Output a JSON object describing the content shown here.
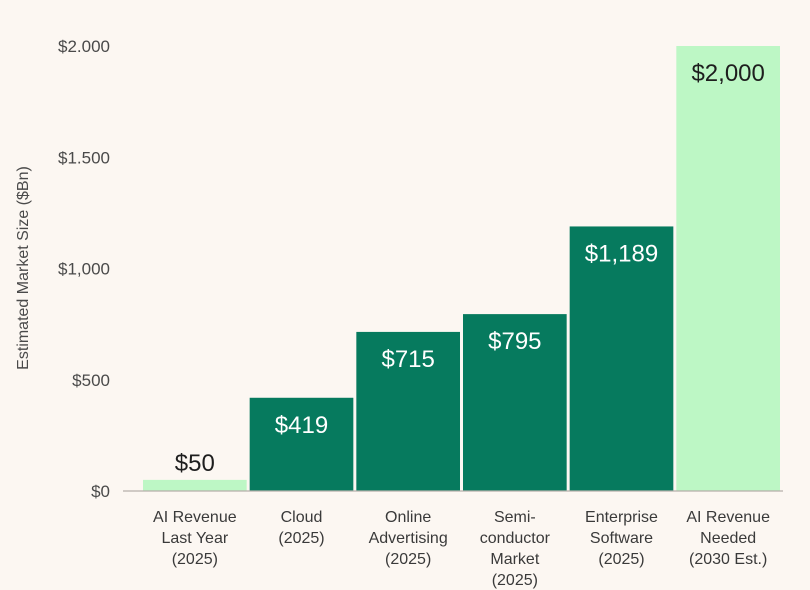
{
  "chart_data": {
    "type": "bar",
    "title": "",
    "xlabel": "",
    "ylabel": "Estimated Market Size ($Bn)",
    "ylim": [
      0,
      2000
    ],
    "yticks": [
      0,
      500,
      1000,
      1500,
      2000
    ],
    "ytick_labels": [
      "$0",
      "$500",
      "$1,000",
      "$1.500",
      "$2.000"
    ],
    "categories": [
      [
        "AI Revenue",
        "Last Year",
        "(2025)"
      ],
      [
        "Cloud",
        "(2025)"
      ],
      [
        "Online",
        "Advertising",
        "(2025)"
      ],
      [
        "Semi-",
        "conductor",
        "Market",
        "(2025)"
      ],
      [
        "Enterprise",
        "Software",
        "(2025)"
      ],
      [
        "AI Revenue",
        "Needed",
        "(2030 Est.)"
      ]
    ],
    "values": [
      50,
      419,
      715,
      795,
      1189,
      2000
    ],
    "value_labels": [
      "$50",
      "$419",
      "$715",
      "$795",
      "$1,189",
      "$2,000"
    ],
    "bar_colors": [
      "#bdf7c5",
      "#067a5e",
      "#067a5e",
      "#067a5e",
      "#067a5e",
      "#bdf7c5"
    ],
    "label_colors": [
      "#1e1e1e",
      "#ffffff",
      "#ffffff",
      "#ffffff",
      "#ffffff",
      "#1e1e1e"
    ],
    "grid": false
  }
}
